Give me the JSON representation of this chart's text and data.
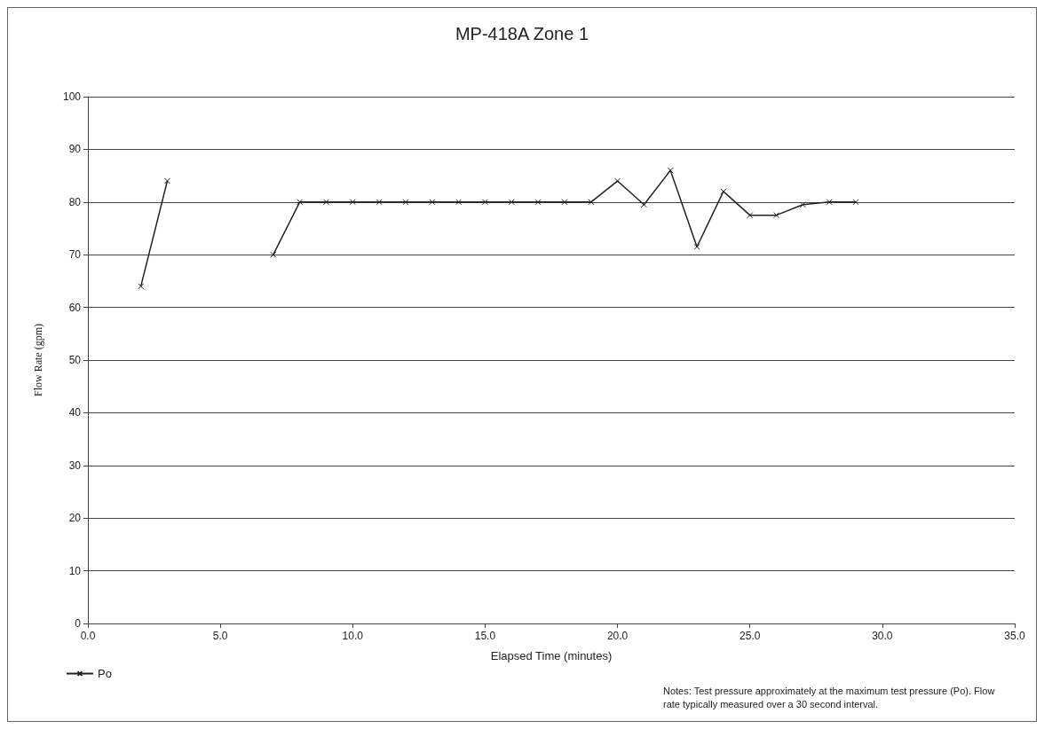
{
  "chart_data": {
    "type": "line",
    "title": "MP-418A Zone 1",
    "xlabel": "Elapsed Time (minutes)",
    "ylabel": "Flow Rate (gpm)",
    "x": [
      2,
      3,
      4,
      5,
      6,
      7,
      8,
      9,
      10,
      11,
      12,
      13,
      14,
      15,
      16,
      17,
      18,
      19,
      20,
      21,
      22,
      23,
      24,
      25,
      26,
      27,
      28,
      29
    ],
    "series": [
      {
        "name": "Po",
        "color": "#222222",
        "values": [
          64,
          84,
          null,
          null,
          null,
          70,
          80,
          80,
          80,
          80,
          80,
          80,
          80,
          80,
          80,
          80,
          80,
          80,
          84,
          79.5,
          86,
          71.5,
          82,
          77.5,
          77.5,
          79.5,
          80,
          80
        ]
      }
    ],
    "xlim": [
      0,
      35
    ],
    "xticks": [
      {
        "value": 0,
        "label": "0.0"
      },
      {
        "value": 5,
        "label": "5.0"
      },
      {
        "value": 10,
        "label": "10.0"
      },
      {
        "value": 15,
        "label": "15.0"
      },
      {
        "value": 20,
        "label": "20.0"
      },
      {
        "value": 25,
        "label": "25.0"
      },
      {
        "value": 30,
        "label": "30.0"
      },
      {
        "value": 35,
        "label": "35.0"
      }
    ],
    "ylim": [
      0,
      100
    ],
    "yticks": [
      0,
      10,
      20,
      30,
      40,
      50,
      60,
      70,
      80,
      90,
      100
    ],
    "grid": "y",
    "legend": "bottom left",
    "marker": "cross",
    "line_style": "solid",
    "annotations": [
      "Notes: Test pressure approximately at the maximum test pressure (Po). Flow rate typically measured over a 30 second interval."
    ]
  }
}
